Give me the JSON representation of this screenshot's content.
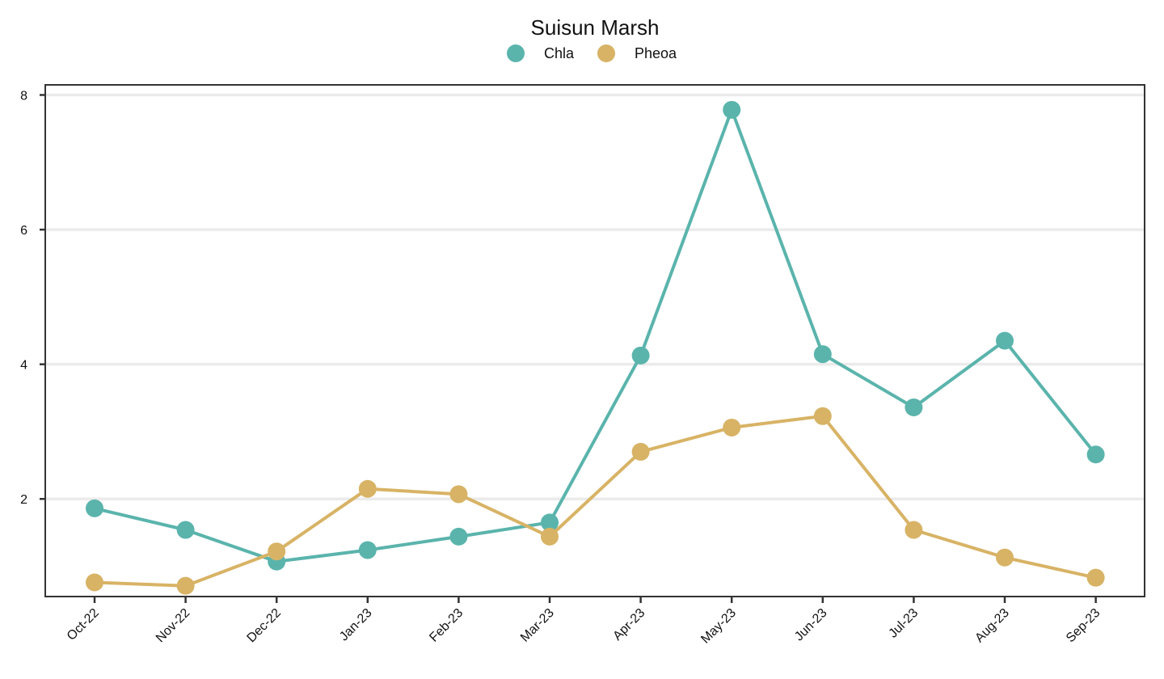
{
  "chart_data": {
    "type": "line",
    "title": "Suisun Marsh",
    "xlabel": "",
    "ylabel": "",
    "categories": [
      "Oct-22",
      "Nov-22",
      "Dec-22",
      "Jan-23",
      "Feb-23",
      "Mar-23",
      "Apr-23",
      "May-23",
      "Jun-23",
      "Jul-23",
      "Aug-23",
      "Sep-23"
    ],
    "series": [
      {
        "name": "Chla",
        "color": "#5ab4ac",
        "values": [
          1.86,
          1.54,
          1.07,
          1.24,
          1.44,
          1.65,
          4.13,
          7.78,
          4.15,
          3.36,
          4.35,
          2.66
        ]
      },
      {
        "name": "Pheoa",
        "color": "#d8b365",
        "values": [
          0.76,
          0.71,
          1.22,
          2.15,
          2.07,
          1.44,
          2.7,
          3.06,
          3.23,
          1.54,
          1.13,
          0.83
        ]
      }
    ],
    "ylim": [
      0.55,
      8.15
    ],
    "yticks": [
      2,
      4,
      6,
      8
    ],
    "grid": "horizontal-major",
    "legend": "top-center"
  }
}
